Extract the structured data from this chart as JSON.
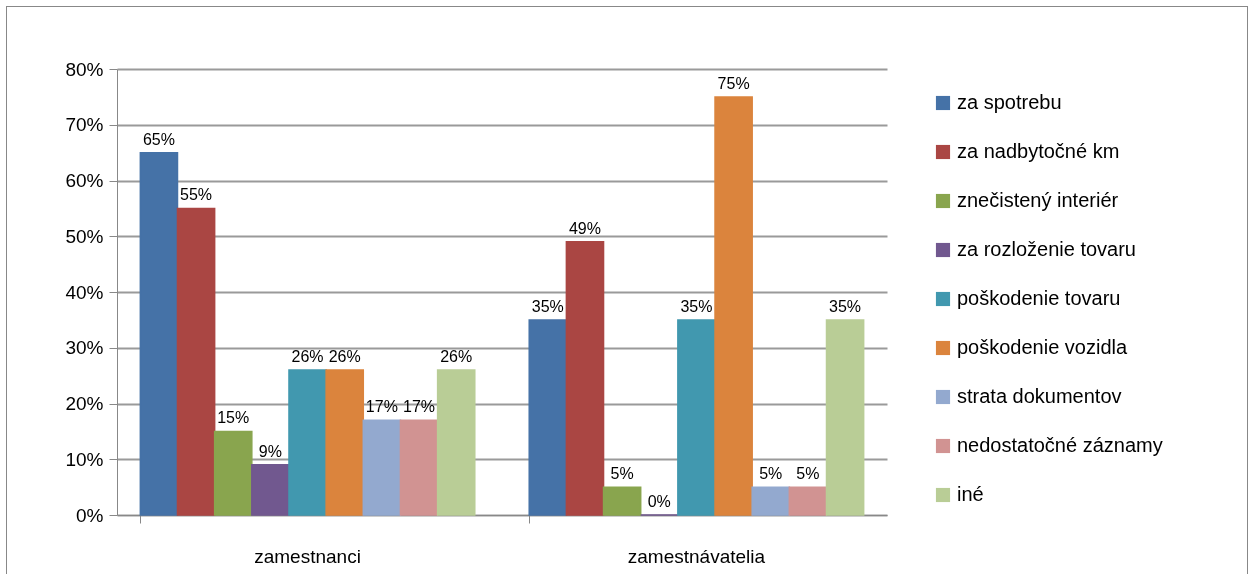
{
  "chart_data": {
    "type": "bar",
    "categories": [
      "zamestnanci",
      "zamestnávatelia"
    ],
    "series": [
      {
        "name": "za spotrebu",
        "color": "#4572a7",
        "values": [
          65,
          35
        ],
        "value_labels": [
          "65%",
          "35%"
        ]
      },
      {
        "name": "za nadbytočné km",
        "color": "#aa4643",
        "values": [
          55,
          49
        ],
        "value_labels": [
          "55%",
          "49%"
        ]
      },
      {
        "name": "znečistený interiér",
        "color": "#89a54e",
        "values": [
          15,
          5
        ],
        "value_labels": [
          "15%",
          "5%"
        ]
      },
      {
        "name": "za rozloženie tovaru",
        "color": "#71588f",
        "values": [
          9,
          0
        ],
        "value_labels": [
          "9%",
          "0%"
        ]
      },
      {
        "name": "poškodenie tovaru",
        "color": "#4198af",
        "values": [
          26,
          35
        ],
        "value_labels": [
          "26%",
          "35%"
        ]
      },
      {
        "name": "poškodenie vozidla",
        "color": "#db843d",
        "values": [
          26,
          75
        ],
        "value_labels": [
          "26%",
          "75%"
        ]
      },
      {
        "name": "strata dokumentov",
        "color": "#93a9cf",
        "values": [
          17,
          5
        ],
        "value_labels": [
          "17%",
          "5%"
        ]
      },
      {
        "name": "nedostatočné záznamy",
        "color": "#d19392",
        "values": [
          17,
          5
        ],
        "value_labels": [
          "17%",
          "5%"
        ]
      },
      {
        "name": "iné",
        "color": "#b9cd96",
        "values": [
          26,
          35
        ],
        "value_labels": [
          "26%",
          "35%"
        ]
      }
    ],
    "ylim": [
      0,
      80
    ],
    "yticks": [
      {
        "value": 0,
        "label": "0%"
      },
      {
        "value": 10,
        "label": "10%"
      },
      {
        "value": 20,
        "label": "20%"
      },
      {
        "value": 30,
        "label": "30%"
      },
      {
        "value": 40,
        "label": "40%"
      },
      {
        "value": 50,
        "label": "50%"
      },
      {
        "value": 60,
        "label": "60%"
      },
      {
        "value": 70,
        "label": "70%"
      },
      {
        "value": 80,
        "label": "80%"
      }
    ],
    "grid": "y",
    "legend": "right"
  }
}
